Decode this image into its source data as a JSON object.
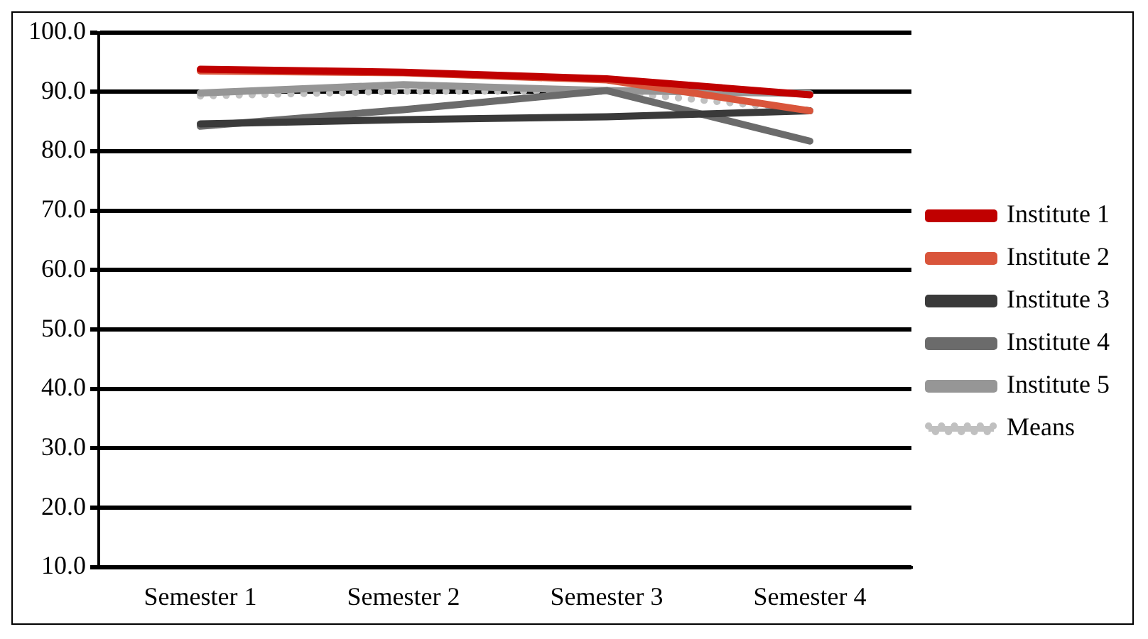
{
  "chart_data": {
    "type": "line",
    "categories": [
      "Semester 1",
      "Semester 2",
      "Semester 3",
      "Semester 4"
    ],
    "series": [
      {
        "name": "Institute 1",
        "color": "#c00000",
        "values": [
          93.8,
          93.3,
          92.2,
          89.5
        ]
      },
      {
        "name": "Institute 2",
        "color": "#d9553b",
        "values": [
          93.5,
          93.2,
          92.0,
          86.8
        ]
      },
      {
        "name": "Institute 3",
        "color": "#3a3a3a",
        "values": [
          84.6,
          85.3,
          85.8,
          86.8
        ]
      },
      {
        "name": "Institute 4",
        "color": "#6b6b6b",
        "values": [
          84.2,
          87.0,
          90.2,
          81.7
        ]
      },
      {
        "name": "Institute 5",
        "color": "#969696",
        "values": [
          89.8,
          91.2,
          90.2,
          89.7
        ]
      },
      {
        "name": "Means",
        "color": "#c0c0c0",
        "values": [
          89.3,
          90.1,
          90.1,
          86.9
        ],
        "line_style": "dotted"
      }
    ],
    "ylim": [
      10,
      100
    ],
    "yticks": [
      {
        "value": 10,
        "label": "10.0"
      },
      {
        "value": 20,
        "label": "20.0"
      },
      {
        "value": 30,
        "label": "30.0"
      },
      {
        "value": 40,
        "label": "40.0"
      },
      {
        "value": 50,
        "label": "50.0"
      },
      {
        "value": 60,
        "label": "60.0"
      },
      {
        "value": 70,
        "label": "70.0"
      },
      {
        "value": 80,
        "label": "80.0"
      },
      {
        "value": 90,
        "label": "90.0"
      },
      {
        "value": 100,
        "label": "100.0"
      }
    ],
    "grid": "y",
    "legend": "right",
    "marker": "none",
    "line_style": "solid"
  }
}
